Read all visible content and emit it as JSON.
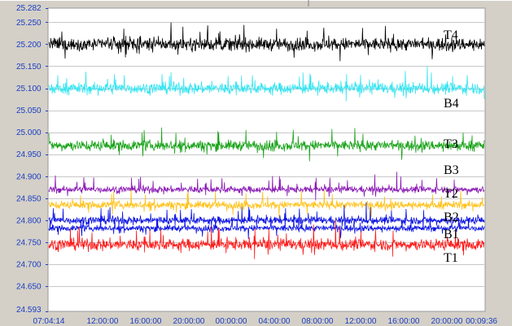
{
  "chart_data": {
    "type": "line",
    "title": "",
    "xlabel": "",
    "ylabel": "",
    "ylim": [
      24.593,
      25.282
    ],
    "y_ticks": [
      "25.282",
      "25.250",
      "25.200",
      "25.150",
      "25.100",
      "25.050",
      "25.000",
      "24.950",
      "24.900",
      "24.850",
      "24.800",
      "24.750",
      "24.700",
      "24.650",
      "24.593"
    ],
    "x_ticks": [
      "07:04:14",
      "12:00:00",
      "16:00:00",
      "20:00:00",
      "00:00:00",
      "04:00:00",
      "08:00:00",
      "12:00:00",
      "16:00:00",
      "20:00:00",
      "00:09:36"
    ],
    "grid": true,
    "legend": "inline-right",
    "series": [
      {
        "name": "T4",
        "color": "#000000",
        "mean": 25.2,
        "noise": 0.025,
        "spike": 0.035
      },
      {
        "name": "B4",
        "color": "#33e5f2",
        "mean": 25.1,
        "noise": 0.022,
        "spike": 0.035
      },
      {
        "name": "T3",
        "color": "#1aa31a",
        "mean": 24.97,
        "noise": 0.02,
        "spike": 0.035
      },
      {
        "name": "B3",
        "color": "#8a1ab5",
        "mean": 24.87,
        "noise": 0.013,
        "spike": 0.03
      },
      {
        "name": "T2",
        "color": "#ffc21a",
        "mean": 24.835,
        "noise": 0.015,
        "spike": 0.03
      },
      {
        "name": "B2",
        "color": "#0d14e6",
        "mean": 24.8,
        "noise": 0.015,
        "spike": 0.03
      },
      {
        "name": "B1",
        "color": "#0d14e6",
        "mean": 24.782,
        "noise": 0.012,
        "spike": 0.025
      },
      {
        "name": "T1",
        "color": "#ff1a1a",
        "mean": 24.745,
        "noise": 0.022,
        "spike": 0.04
      }
    ]
  }
}
